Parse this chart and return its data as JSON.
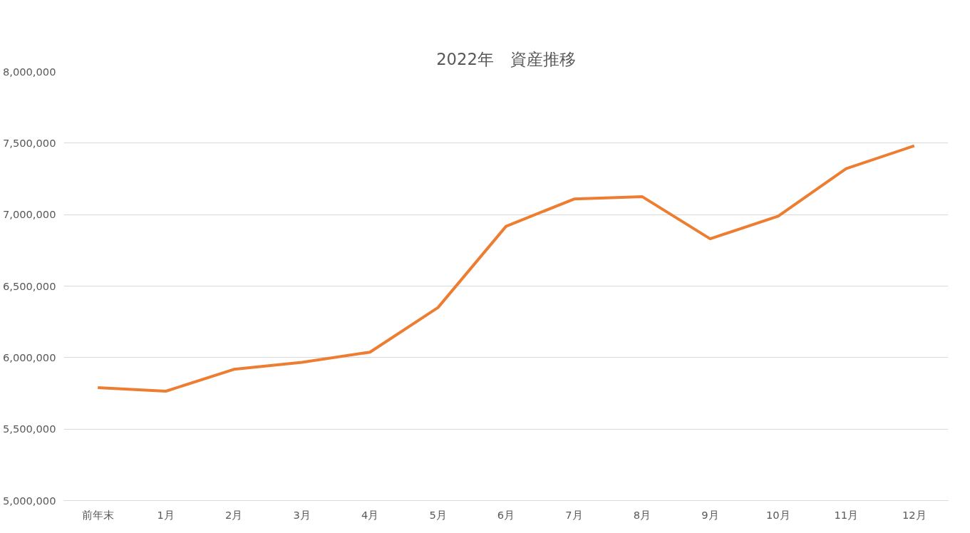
{
  "chart_data": {
    "type": "line",
    "title": "2022年　資産推移",
    "categories": [
      "前年末",
      "1月",
      "2月",
      "3月",
      "4月",
      "5月",
      "6月",
      "7月",
      "8月",
      "9月",
      "10月",
      "11月",
      "12月"
    ],
    "series": [
      {
        "color": "#ed7d31",
        "values": [
          5790000,
          5765000,
          5918000,
          5967000,
          6038000,
          6350000,
          6918000,
          7109000,
          7126000,
          6831000,
          6989000,
          7322000,
          7481000
        ]
      }
    ],
    "ylim": [
      5000000,
      8000000
    ],
    "yticks": [
      {
        "value": 5000000,
        "label": "5,000,000"
      },
      {
        "value": 5500000,
        "label": "5,500,000"
      },
      {
        "value": 6000000,
        "label": "6,000,000"
      },
      {
        "value": 6500000,
        "label": "6,500,000"
      },
      {
        "value": 7000000,
        "label": "7,000,000"
      },
      {
        "value": 7500000,
        "label": "7,500,000"
      },
      {
        "value": 8000000,
        "label": "8,000,000"
      }
    ],
    "grid": "y",
    "marker": "none",
    "line_style": "solid"
  }
}
